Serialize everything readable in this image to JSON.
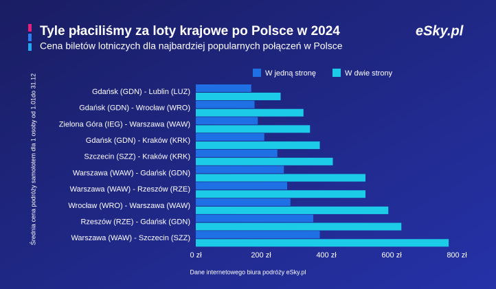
{
  "chart_data": {
    "type": "hbar",
    "title": "Tyle płaciliśmy za loty krajowe po Polsce w 2024",
    "subtitle": "Cena biletów lotniczych dla najbardziej popularnych połączeń w Polsce",
    "logo": "eSky.pl",
    "y_label": "Średnia cena podróży samolotem dla 1 osoby od 1.01do 31.12",
    "source": "Dane internetowego biura podróży eSky.pl",
    "categories": [
      "Gdańsk (GDN) - Lublin (LUZ)",
      "Gdańsk (GDN) - Wrocław (WRO)",
      "Zielona Góra (IEG) - Warszawa (WAW)",
      "Gdańsk (GDN) - Kraków (KRK)",
      "Szczecin (SZZ) - Kraków (KRK)",
      "Warszawa (WAW) - Gdańsk (GDN)",
      "Warszawa (WAW) - Rzeszów (RZE)",
      "Wrocław (WRO) - Warszawa (WAW)",
      "Rzeszów (RZE) - Gdańsk (GDN)",
      "Warszawa (WAW) - Szczecin (SZZ)"
    ],
    "series": [
      {
        "name": "W jedną stronę",
        "color": "#1f6fe5",
        "values": [
          170,
          180,
          190,
          210,
          250,
          270,
          280,
          290,
          360,
          380
        ]
      },
      {
        "name": "W dwie strony",
        "color": "#1ccbe8",
        "values": [
          260,
          330,
          350,
          380,
          420,
          520,
          520,
          590,
          630,
          775
        ]
      }
    ],
    "xlim": [
      0,
      800
    ],
    "xticks": [
      {
        "value": 0,
        "label": "0 zł"
      },
      {
        "value": 200,
        "label": "200 zł"
      },
      {
        "value": 400,
        "label": "400 zł"
      },
      {
        "value": 600,
        "label": "600 zł"
      },
      {
        "value": 800,
        "label": "800 zł"
      }
    ],
    "grid": false
  }
}
